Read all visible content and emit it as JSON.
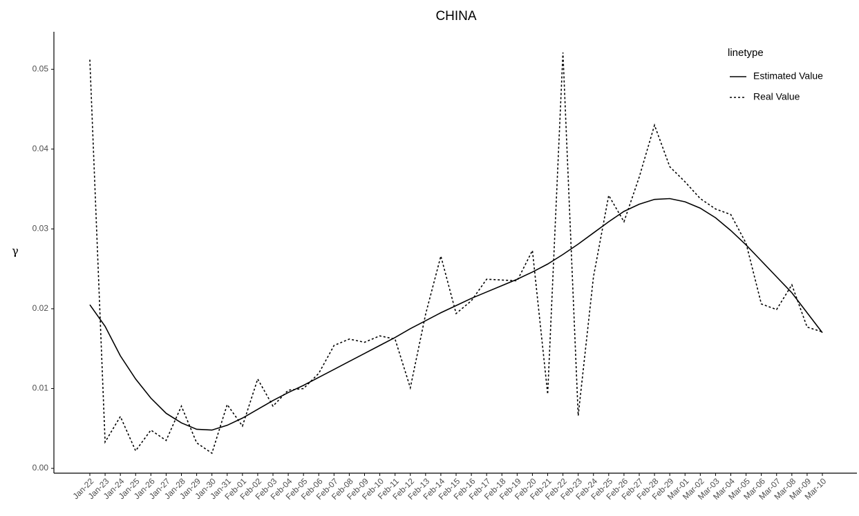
{
  "chart_data": {
    "type": "line",
    "title": "CHINA",
    "y_label": "γ",
    "categories": [
      "Jan-22",
      "Jan-23",
      "Jan-24",
      "Jan-25",
      "Jan-26",
      "Jan-27",
      "Jan-28",
      "Jan-29",
      "Jan-30",
      "Jan-31",
      "Feb-01",
      "Feb-02",
      "Feb-03",
      "Feb-04",
      "Feb-05",
      "Feb-06",
      "Feb-07",
      "Feb-08",
      "Feb-09",
      "Feb-10",
      "Feb-11",
      "Feb-12",
      "Feb-13",
      "Feb-14",
      "Feb-15",
      "Feb-16",
      "Feb-17",
      "Feb-18",
      "Feb-19",
      "Feb-20",
      "Feb-21",
      "Feb-22",
      "Feb-23",
      "Feb-24",
      "Feb-25",
      "Feb-26",
      "Feb-27",
      "Feb-28",
      "Feb-29",
      "Mar-01",
      "Mar-02",
      "Mar-03",
      "Mar-04",
      "Mar-05",
      "Mar-06",
      "Mar-07",
      "Mar-08",
      "Mar-09",
      "Mar-10"
    ],
    "legend_title": "linetype",
    "series": [
      {
        "name": "Estimated Value",
        "color": "#000000",
        "line_style": "solid",
        "values": [
          0.0205,
          0.0178,
          0.0141,
          0.0112,
          0.0088,
          0.0069,
          0.0057,
          0.0049,
          0.0048,
          0.0054,
          0.0063,
          0.0074,
          0.0085,
          0.0095,
          0.0104,
          0.0114,
          0.0124,
          0.0134,
          0.0144,
          0.0154,
          0.0164,
          0.0175,
          0.0185,
          0.0195,
          0.0204,
          0.0213,
          0.0221,
          0.0229,
          0.0237,
          0.0246,
          0.0256,
          0.0268,
          0.0281,
          0.0295,
          0.0309,
          0.0322,
          0.0331,
          0.0337,
          0.0338,
          0.0334,
          0.0326,
          0.0314,
          0.0298,
          0.028,
          0.026,
          0.024,
          0.022,
          0.0195,
          0.017
        ]
      },
      {
        "name": "Real Value",
        "color": "#000000",
        "line_style": "dotted",
        "values": [
          0.0512,
          0.0033,
          0.0065,
          0.0022,
          0.0048,
          0.0035,
          0.0078,
          0.0032,
          0.0019,
          0.008,
          0.0053,
          0.0112,
          0.0078,
          0.0098,
          0.01,
          0.0119,
          0.0154,
          0.0162,
          0.0158,
          0.0166,
          0.0162,
          0.0101,
          0.0193,
          0.0266,
          0.0194,
          0.021,
          0.0237,
          0.0236,
          0.0235,
          0.0273,
          0.0093,
          0.0521,
          0.0066,
          0.024,
          0.0342,
          0.0309,
          0.0365,
          0.043,
          0.0378,
          0.0359,
          0.0338,
          0.0325,
          0.0318,
          0.0282,
          0.0206,
          0.0199,
          0.023,
          0.0177,
          0.0171
        ]
      }
    ],
    "ylim": [
      -0.0006,
      0.0547
    ],
    "yticks": [
      {
        "value": 0,
        "label": "0.00"
      },
      0.01,
      0.02,
      0.03,
      0.04,
      0.05
    ],
    "grid": false,
    "legend_position": "top-right"
  }
}
